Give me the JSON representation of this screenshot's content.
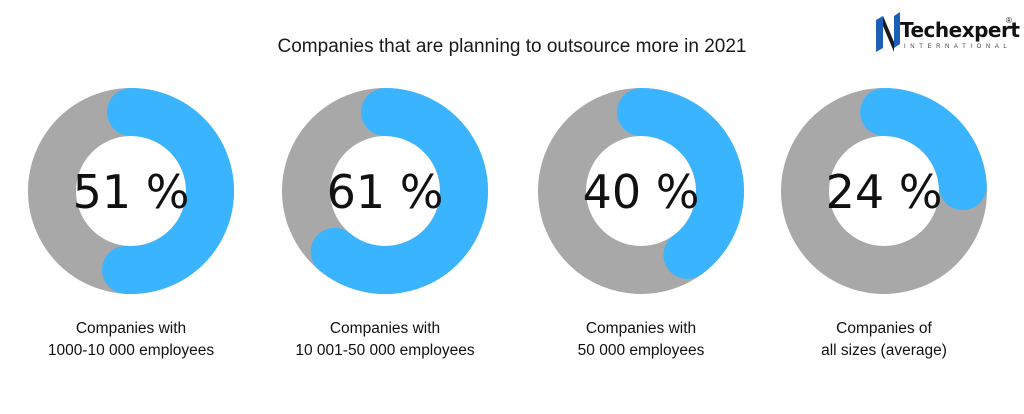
{
  "header": {
    "title": "Companies that are planning to outsource more in 2021"
  },
  "logo": {
    "name": "Techexpert",
    "registered": "®",
    "subtitle": "INTERNATIONAL"
  },
  "colors": {
    "filled": "#3ab4ff",
    "remaining": "#a8a8a8",
    "text": "#111111",
    "logo_blue": "#1c5fb8"
  },
  "chart_data": {
    "type": "pie",
    "style": "donut",
    "unit": "%",
    "items": [
      {
        "value": 51,
        "label_text": "51 %",
        "caption": [
          "Companies with",
          "1000-10 000 employees"
        ]
      },
      {
        "value": 61,
        "label_text": "61 %",
        "caption": [
          "Companies with",
          "10 001-50 000 employees"
        ]
      },
      {
        "value": 40,
        "label_text": "40 %",
        "caption": [
          "Companies with",
          "50 000 employees"
        ]
      },
      {
        "value": 24,
        "label_text": "24 %",
        "caption": [
          "Companies of",
          "all sizes (average)"
        ]
      }
    ]
  }
}
